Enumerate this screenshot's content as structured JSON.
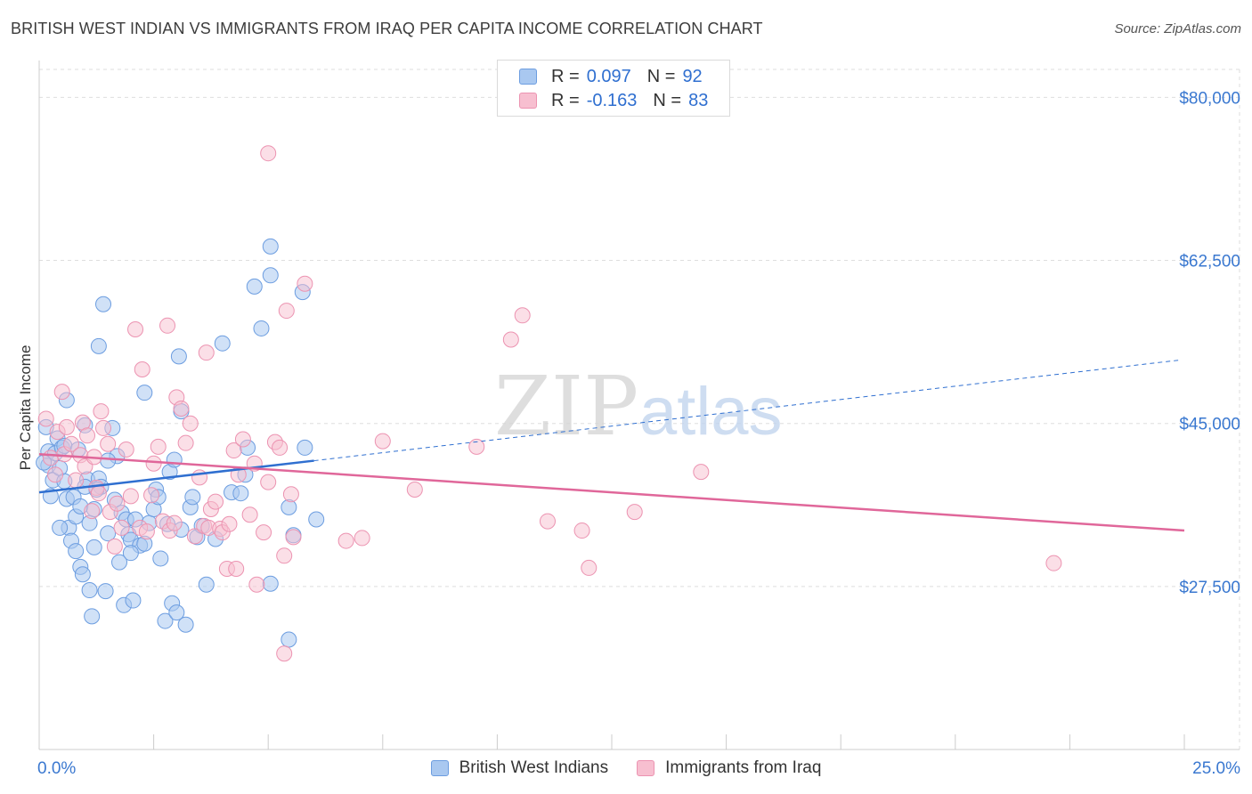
{
  "header": {
    "title": "BRITISH WEST INDIAN VS IMMIGRANTS FROM IRAQ PER CAPITA INCOME CORRELATION CHART",
    "source": "Source: ZipAtlas.com"
  },
  "watermark": {
    "zip": "ZIP",
    "atlas": "atlas"
  },
  "legend": {
    "rows": [
      {
        "r_label": "R =",
        "r_value": "0.097",
        "n_label": "N =",
        "n_value": "92"
      },
      {
        "r_label": "R =",
        "r_value": "-0.163",
        "n_label": "N =",
        "n_value": "83"
      }
    ]
  },
  "colors": {
    "blue_fill": "#a9c8f0",
    "blue_stroke": "#6c9de0",
    "blue_line": "#2f6fd0",
    "pink_fill": "#f7bfd0",
    "pink_stroke": "#ec93b1",
    "pink_line": "#e0679a",
    "axis_label": "#3a78d0",
    "grid": "#dedede"
  },
  "chart_data": {
    "type": "scatter",
    "title": "BRITISH WEST INDIAN VS IMMIGRANTS FROM IRAQ PER CAPITA INCOME CORRELATION CHART",
    "xlabel": "",
    "ylabel": "Per Capita Income",
    "xlim": [
      0,
      25
    ],
    "ylim": [
      10000,
      83000
    ],
    "x_tick_labels": [
      "0.0%",
      "25.0%"
    ],
    "y_ticks": [
      27500,
      45000,
      62500,
      80000
    ],
    "y_tick_labels": [
      "$27,500",
      "$45,000",
      "$62,500",
      "$80,000"
    ],
    "grid": true,
    "legend_position": "top-center",
    "series": [
      {
        "name": "British West Indians",
        "r": 0.097,
        "n": 92,
        "trend": {
          "x0": 0,
          "y0": 37600,
          "x1": 6.0,
          "y1": 41000,
          "x_dash_end": 24.9,
          "y_dash_end": 51800
        },
        "points": [
          [
            0.15,
            44600
          ],
          [
            0.2,
            42000
          ],
          [
            0.2,
            40500
          ],
          [
            0.3,
            38900
          ],
          [
            0.25,
            37200
          ],
          [
            0.35,
            41800
          ],
          [
            0.4,
            43400
          ],
          [
            0.45,
            40200
          ],
          [
            0.5,
            42400
          ],
          [
            0.55,
            38800
          ],
          [
            0.6,
            47500
          ],
          [
            0.6,
            36900
          ],
          [
            0.65,
            33800
          ],
          [
            0.7,
            32400
          ],
          [
            0.75,
            37100
          ],
          [
            0.8,
            35000
          ],
          [
            0.8,
            31300
          ],
          [
            0.9,
            36100
          ],
          [
            0.9,
            29600
          ],
          [
            0.95,
            28800
          ],
          [
            1.0,
            44800
          ],
          [
            1.05,
            39000
          ],
          [
            1.1,
            34300
          ],
          [
            1.1,
            27100
          ],
          [
            1.15,
            24300
          ],
          [
            1.2,
            31700
          ],
          [
            1.2,
            35800
          ],
          [
            1.3,
            39100
          ],
          [
            1.3,
            53300
          ],
          [
            1.35,
            38200
          ],
          [
            1.4,
            57800
          ],
          [
            1.45,
            27000
          ],
          [
            1.5,
            33200
          ],
          [
            1.6,
            44500
          ],
          [
            1.65,
            36800
          ],
          [
            1.7,
            41500
          ],
          [
            1.75,
            30100
          ],
          [
            1.8,
            35400
          ],
          [
            1.85,
            25500
          ],
          [
            1.9,
            34700
          ],
          [
            1.95,
            33100
          ],
          [
            2.0,
            32500
          ],
          [
            2.05,
            26000
          ],
          [
            2.1,
            34700
          ],
          [
            2.2,
            31900
          ],
          [
            2.3,
            32100
          ],
          [
            2.4,
            34300
          ],
          [
            2.5,
            35800
          ],
          [
            2.55,
            37900
          ],
          [
            2.6,
            37100
          ],
          [
            2.65,
            30500
          ],
          [
            2.75,
            23800
          ],
          [
            2.8,
            34200
          ],
          [
            2.85,
            39800
          ],
          [
            2.9,
            25700
          ],
          [
            2.95,
            41100
          ],
          [
            3.0,
            24700
          ],
          [
            3.05,
            52200
          ],
          [
            3.1,
            33600
          ],
          [
            3.2,
            23400
          ],
          [
            3.3,
            36000
          ],
          [
            3.35,
            37100
          ],
          [
            3.45,
            32800
          ],
          [
            3.55,
            34000
          ],
          [
            3.65,
            27700
          ],
          [
            3.85,
            32600
          ],
          [
            4.0,
            53600
          ],
          [
            4.2,
            37600
          ],
          [
            4.4,
            37500
          ],
          [
            4.5,
            39500
          ],
          [
            4.55,
            42400
          ],
          [
            4.7,
            59700
          ],
          [
            4.85,
            55200
          ],
          [
            5.05,
            60900
          ],
          [
            5.05,
            64000
          ],
          [
            5.05,
            27800
          ],
          [
            5.45,
            21800
          ],
          [
            5.45,
            36000
          ],
          [
            5.55,
            33000
          ],
          [
            5.75,
            59100
          ],
          [
            5.8,
            42400
          ],
          [
            6.05,
            34700
          ],
          [
            0.1,
            40800
          ],
          [
            0.55,
            42600
          ],
          [
            1.25,
            37900
          ],
          [
            2.0,
            31100
          ],
          [
            0.85,
            42200
          ],
          [
            0.45,
            33800
          ],
          [
            1.0,
            38200
          ],
          [
            1.5,
            41000
          ],
          [
            2.3,
            48300
          ],
          [
            3.1,
            46300
          ]
        ]
      },
      {
        "name": "Immigrants from Iraq",
        "r": -0.163,
        "n": 83,
        "trend": {
          "x0": 0,
          "y0": 41700,
          "x1": 25.0,
          "y1": 33500
        },
        "points": [
          [
            0.15,
            45500
          ],
          [
            0.25,
            41300
          ],
          [
            0.35,
            39500
          ],
          [
            0.4,
            44100
          ],
          [
            0.5,
            48400
          ],
          [
            0.55,
            41700
          ],
          [
            0.6,
            44600
          ],
          [
            0.7,
            42800
          ],
          [
            0.8,
            38900
          ],
          [
            0.9,
            41600
          ],
          [
            0.95,
            45100
          ],
          [
            1.0,
            40400
          ],
          [
            1.05,
            43700
          ],
          [
            1.15,
            35600
          ],
          [
            1.2,
            41400
          ],
          [
            1.25,
            38100
          ],
          [
            1.3,
            37500
          ],
          [
            1.35,
            46300
          ],
          [
            1.4,
            44500
          ],
          [
            1.5,
            42800
          ],
          [
            1.55,
            35500
          ],
          [
            1.65,
            31800
          ],
          [
            1.7,
            36400
          ],
          [
            1.8,
            33800
          ],
          [
            1.9,
            42200
          ],
          [
            2.0,
            37200
          ],
          [
            2.1,
            55100
          ],
          [
            2.2,
            33800
          ],
          [
            2.25,
            50800
          ],
          [
            2.35,
            33400
          ],
          [
            2.45,
            37300
          ],
          [
            2.5,
            40700
          ],
          [
            2.6,
            42500
          ],
          [
            2.7,
            34500
          ],
          [
            2.8,
            55500
          ],
          [
            2.85,
            33500
          ],
          [
            2.95,
            34300
          ],
          [
            3.0,
            47800
          ],
          [
            3.1,
            46600
          ],
          [
            3.2,
            42900
          ],
          [
            3.3,
            45000
          ],
          [
            3.4,
            32900
          ],
          [
            3.5,
            39200
          ],
          [
            3.6,
            34000
          ],
          [
            3.65,
            52600
          ],
          [
            3.7,
            33800
          ],
          [
            3.75,
            35800
          ],
          [
            3.85,
            36600
          ],
          [
            3.95,
            33700
          ],
          [
            4.0,
            33300
          ],
          [
            4.1,
            29400
          ],
          [
            4.15,
            34200
          ],
          [
            4.25,
            42100
          ],
          [
            4.3,
            29400
          ],
          [
            4.35,
            39500
          ],
          [
            4.45,
            43300
          ],
          [
            4.6,
            35200
          ],
          [
            4.7,
            40700
          ],
          [
            4.75,
            27700
          ],
          [
            4.9,
            33300
          ],
          [
            5.0,
            38700
          ],
          [
            5.15,
            43000
          ],
          [
            5.25,
            42400
          ],
          [
            5.35,
            20300
          ],
          [
            5.5,
            37400
          ],
          [
            5.8,
            60000
          ],
          [
            5.55,
            32800
          ],
          [
            5.35,
            30800
          ],
          [
            5.4,
            57100
          ],
          [
            6.7,
            32400
          ],
          [
            7.05,
            32700
          ],
          [
            7.5,
            43100
          ],
          [
            8.2,
            37900
          ],
          [
            9.55,
            42500
          ],
          [
            10.3,
            54000
          ],
          [
            10.55,
            56600
          ],
          [
            11.1,
            34500
          ],
          [
            11.85,
            33500
          ],
          [
            12.0,
            29500
          ],
          [
            13.0,
            35500
          ],
          [
            14.45,
            39800
          ],
          [
            22.15,
            30000
          ],
          [
            5.0,
            74000
          ]
        ]
      }
    ]
  },
  "bottom_legend": {
    "items": [
      "British West Indians",
      "Immigrants from Iraq"
    ]
  }
}
